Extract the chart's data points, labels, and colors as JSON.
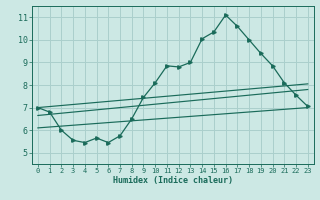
{
  "xlabel": "Humidex (Indice chaleur)",
  "xlim": [
    -0.5,
    23.5
  ],
  "ylim": [
    4.5,
    11.5
  ],
  "xticks": [
    0,
    1,
    2,
    3,
    4,
    5,
    6,
    7,
    8,
    9,
    10,
    11,
    12,
    13,
    14,
    15,
    16,
    17,
    18,
    19,
    20,
    21,
    22,
    23
  ],
  "yticks": [
    5,
    6,
    7,
    8,
    9,
    10,
    11
  ],
  "background_color": "#cce8e4",
  "grid_color": "#aacfcc",
  "line_color": "#1a6b5a",
  "main_series_x": [
    0,
    1,
    2,
    3,
    4,
    5,
    6,
    7,
    8,
    9,
    10,
    11,
    12,
    13,
    14,
    15,
    16,
    17,
    18,
    19,
    20,
    21,
    22,
    23
  ],
  "main_series_y": [
    7.0,
    6.8,
    6.0,
    5.55,
    5.45,
    5.65,
    5.45,
    5.75,
    6.5,
    7.45,
    8.1,
    8.85,
    8.8,
    9.0,
    10.05,
    10.35,
    11.1,
    10.6,
    10.0,
    9.4,
    8.85,
    8.1,
    7.55,
    7.05
  ],
  "line1_x": [
    0,
    23
  ],
  "line1_y": [
    7.0,
    8.05
  ],
  "line2_x": [
    0,
    23
  ],
  "line2_y": [
    6.65,
    7.8
  ],
  "line3_x": [
    0,
    23
  ],
  "line3_y": [
    6.1,
    7.0
  ]
}
